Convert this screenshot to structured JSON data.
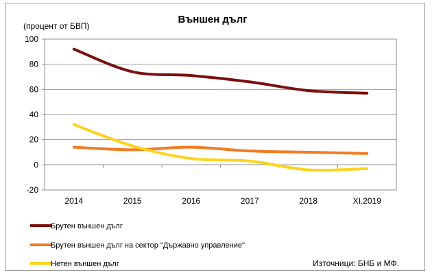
{
  "chart_data": {
    "type": "line",
    "title": "Външен дълг",
    "unit_label": "(процент от БВП)",
    "categories": [
      "2014",
      "2015",
      "2016",
      "2017",
      "2018",
      "XI.2019"
    ],
    "ylim": [
      -20,
      100
    ],
    "yticks": [
      -20,
      0,
      20,
      40,
      60,
      80,
      100
    ],
    "grid": true,
    "legend_placement": "bottom-left",
    "series": [
      {
        "name": "Брутен външен дълг",
        "color": "#7b0f0f",
        "values": [
          92,
          74,
          71,
          66,
          59,
          57
        ]
      },
      {
        "name": "Брутен външен дълг на сектор \"Държавно управление\"",
        "color": "#f47a20",
        "values": [
          14,
          12,
          14,
          11,
          10,
          9
        ]
      },
      {
        "name": "Нетен външен дълг",
        "color": "#ffd21f",
        "values": [
          32,
          15,
          5,
          3,
          -4,
          -3
        ]
      }
    ],
    "source": "Източници: БНБ и МФ."
  }
}
